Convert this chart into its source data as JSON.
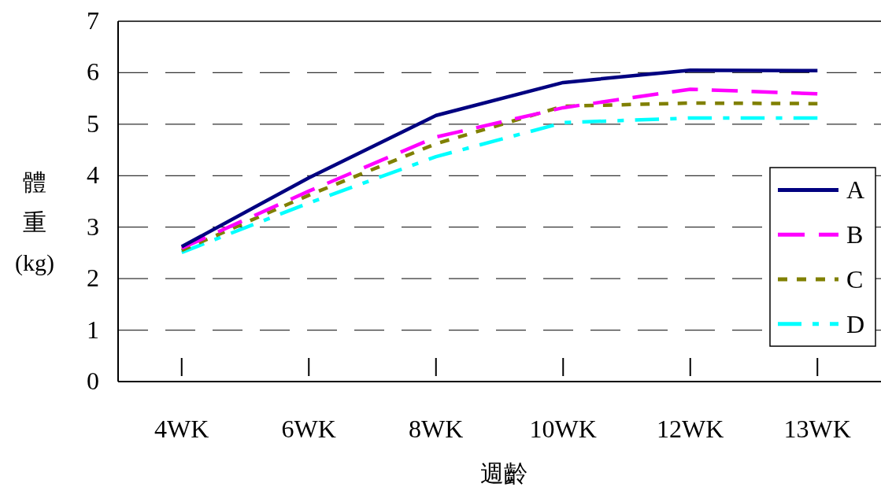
{
  "chart_data": {
    "type": "line",
    "xlabel": "週齡",
    "ylabel": "體重(kg)",
    "categories": [
      "4WK",
      "6WK",
      "8WK",
      "10WK",
      "12WK",
      "13WK"
    ],
    "series": [
      {
        "name": "A",
        "color": "#000080",
        "line_style": "solid",
        "values": [
          2.62,
          3.96,
          5.17,
          5.81,
          6.05,
          6.04
        ]
      },
      {
        "name": "B",
        "color": "#ff00ff",
        "line_style": "dashed",
        "values": [
          2.59,
          3.7,
          4.75,
          5.32,
          5.68,
          5.59
        ]
      },
      {
        "name": "C",
        "color": "#808000",
        "line_style": "dotted",
        "values": [
          2.55,
          3.62,
          4.62,
          5.35,
          5.41,
          5.4
        ]
      },
      {
        "name": "D",
        "color": "#00ffff",
        "line_style": "dashdot",
        "values": [
          2.51,
          3.47,
          4.37,
          5.03,
          5.12,
          5.12
        ]
      }
    ],
    "ylim": [
      0,
      7
    ],
    "yticks": [
      0,
      1,
      2,
      3,
      4,
      5,
      6,
      7
    ],
    "grid": "y",
    "legend": "right",
    "marker": "none"
  }
}
